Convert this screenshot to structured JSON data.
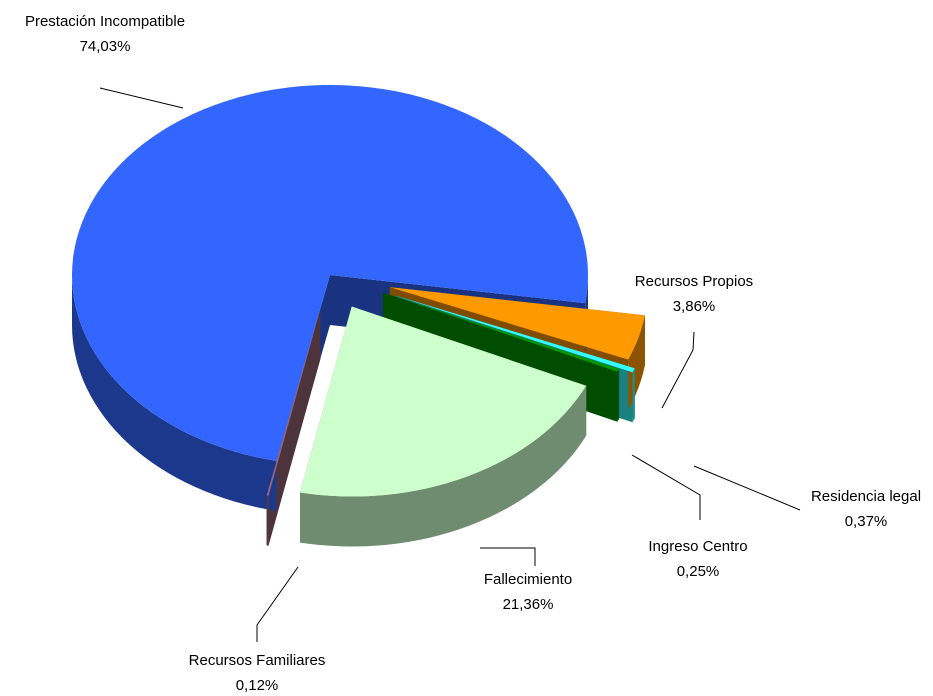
{
  "chart_data": {
    "type": "pie",
    "categories": [
      "Prestación Incompatible",
      "Recursos Propios",
      "Residencia legal",
      "Ingreso Centro",
      "Fallecimiento",
      "Recursos Familiares"
    ],
    "values": [
      74.03,
      3.86,
      0.37,
      0.25,
      21.36,
      0.12
    ],
    "value_labels": [
      "74,03%",
      "3,86%",
      "0,37%",
      "0,25%",
      "21,36%",
      "0,12%"
    ],
    "colors": [
      "#3366ff",
      "#ff9900",
      "#33ffff",
      "#009900",
      "#ccffcc",
      "#996677"
    ]
  }
}
